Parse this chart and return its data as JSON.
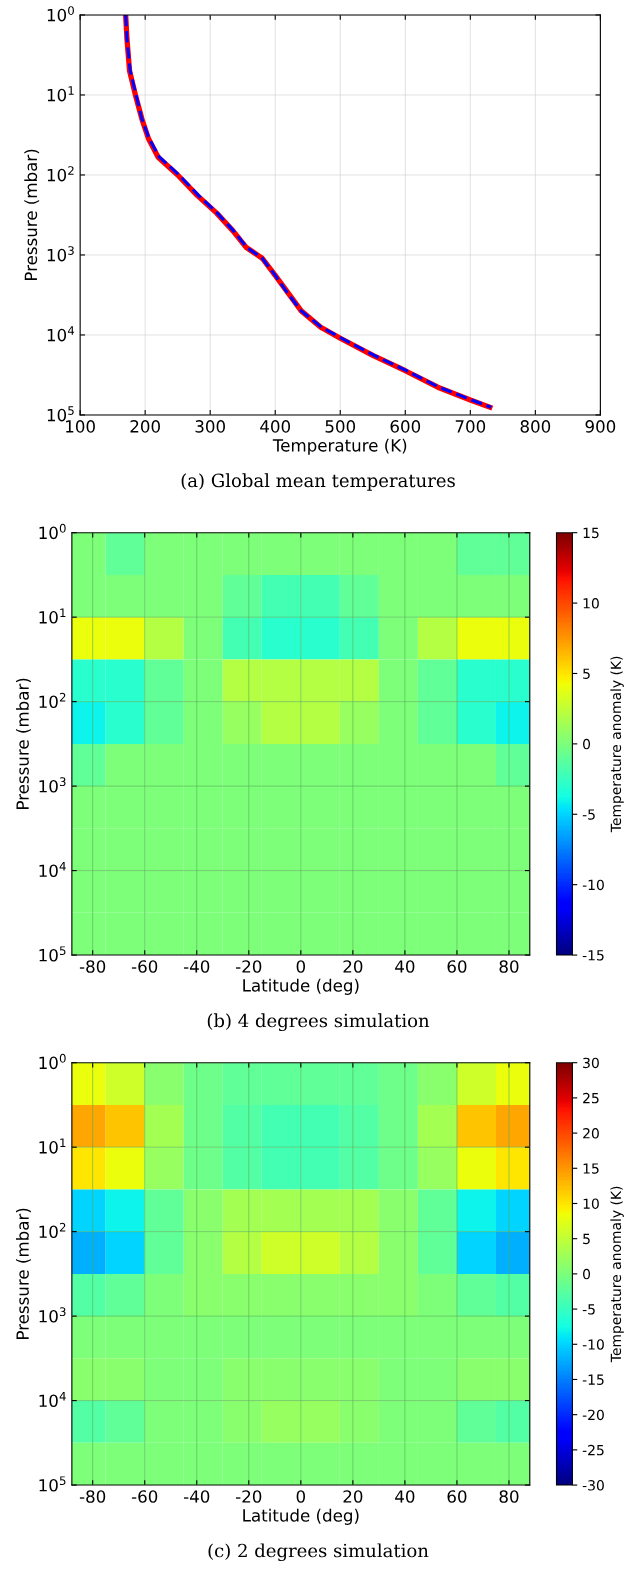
{
  "chart_data": [
    {
      "type": "line",
      "xlabel": "Temperature (K)",
      "ylabel": "Pressure (mbar)",
      "log": "y",
      "grid": true,
      "xlim": [
        100,
        900
      ],
      "xticks": [
        100,
        200,
        300,
        400,
        500,
        600,
        700,
        800,
        900
      ],
      "ylim": [
        100000,
        1
      ],
      "yticks": [
        {
          "value": 1,
          "label": "10$^{0}$"
        },
        {
          "value": 10,
          "label": "10$^{1}$"
        },
        {
          "value": 100,
          "label": "10$^{2}$"
        },
        {
          "value": 1000,
          "label": "10$^{3}$"
        },
        {
          "value": 10000,
          "label": "10$^{4}$"
        },
        {
          "value": 100000,
          "label": "10$^{5}$"
        }
      ],
      "series": [
        {
          "color": "#ff0000",
          "line_style": "solid",
          "x": [
            170,
            172,
            176,
            185,
            195,
            205,
            220,
            250,
            280,
            310,
            335,
            355,
            380,
            400,
            420,
            440,
            470,
            500,
            550,
            600,
            650,
            700,
            730
          ],
          "values": [
            1,
            2,
            5,
            10,
            20,
            35,
            60,
            100,
            180,
            300,
            500,
            800,
            1100,
            1800,
            3000,
            5000,
            8000,
            11000,
            18000,
            28000,
            45000,
            65000,
            80000
          ]
        },
        {
          "color": "#0000ff",
          "line_style": "dashed",
          "x": [
            170,
            172,
            177,
            186,
            195,
            206,
            222,
            252,
            282,
            311,
            336,
            356,
            380,
            400,
            419,
            440,
            471,
            502,
            552,
            602,
            652,
            702,
            732
          ],
          "values": [
            1,
            2,
            5,
            10,
            20,
            35,
            60,
            100,
            180,
            300,
            500,
            800,
            1100,
            1800,
            3000,
            5000,
            8000,
            11000,
            18000,
            28000,
            45000,
            65000,
            80000
          ]
        }
      ],
      "annotations": [
        "(a) Global mean temperatures"
      ]
    },
    {
      "type": "heatmap",
      "xlabel": "Latitude (deg)",
      "ylabel": "Pressure (mbar)",
      "clabel": "Temperature anomaly (K)",
      "log": "y",
      "grid": true,
      "x": [
        -82.5,
        -67.5,
        -52.5,
        -37.5,
        -22.5,
        -7.5,
        7.5,
        22.5,
        37.5,
        52.5,
        67.5,
        82.5
      ],
      "y": [
        1.78,
        5.62,
        17.8,
        56.2,
        178,
        562,
        1780,
        5620,
        17800,
        56200
      ],
      "xlim": [
        -88,
        88
      ],
      "xticks": [
        -80,
        -60,
        -40,
        -20,
        0,
        20,
        40,
        60,
        80
      ],
      "ylim": [
        100000,
        1
      ],
      "yticks": [
        {
          "value": 1,
          "label": "10$^{0}$"
        },
        {
          "value": 10,
          "label": "10$^{1}$"
        },
        {
          "value": 100,
          "label": "10$^{2}$"
        },
        {
          "value": 1000,
          "label": "10$^{3}$"
        },
        {
          "value": 10000,
          "label": "10$^{4}$"
        },
        {
          "value": 100000,
          "label": "10$^{5}$"
        }
      ],
      "clim": [
        -15,
        15
      ],
      "cticks": [
        -15,
        -10,
        -5,
        0,
        5,
        10,
        15
      ],
      "cells": [
        [
          0,
          -1,
          0,
          0,
          0,
          0,
          0,
          0,
          0,
          0,
          -1,
          -1
        ],
        [
          0,
          0,
          0,
          0,
          -1,
          -2,
          -2,
          -1,
          0,
          0,
          0,
          0
        ],
        [
          4,
          4,
          2,
          0,
          -2,
          -3,
          -3,
          -2,
          0,
          2,
          4,
          4
        ],
        [
          -3,
          -3,
          -1,
          0,
          2,
          2,
          2,
          2,
          0,
          -1,
          -3,
          -3
        ],
        [
          -4,
          -3,
          -1,
          0,
          1,
          2,
          2,
          1,
          0,
          -1,
          -3,
          -4
        ],
        [
          -1,
          0,
          0,
          0,
          0,
          0,
          0,
          0,
          0,
          0,
          0,
          -1
        ],
        [
          0,
          0,
          0,
          0,
          0,
          0,
          0,
          0,
          0,
          0,
          0,
          0
        ],
        [
          0,
          0,
          0,
          0,
          0,
          0,
          0,
          0,
          0,
          0,
          0,
          0
        ],
        [
          0,
          0,
          0,
          0,
          0,
          0,
          0,
          0,
          0,
          0,
          0,
          0
        ],
        [
          0,
          0,
          0,
          0,
          0,
          0,
          0,
          0,
          0,
          0,
          0,
          0
        ]
      ],
      "annotations": [
        "(b) 4 degrees simulation"
      ]
    },
    {
      "type": "heatmap",
      "xlabel": "Latitude (deg)",
      "ylabel": "Pressure (mbar)",
      "clabel": "Temperature anomaly (K)",
      "log": "y",
      "grid": true,
      "x": [
        -82.5,
        -67.5,
        -52.5,
        -37.5,
        -22.5,
        -7.5,
        7.5,
        22.5,
        37.5,
        52.5,
        67.5,
        82.5
      ],
      "y": [
        1.78,
        5.62,
        17.8,
        56.2,
        178,
        562,
        1780,
        5620,
        17800,
        56200
      ],
      "xlim": [
        -88,
        88
      ],
      "xticks": [
        -80,
        -60,
        -40,
        -20,
        0,
        20,
        40,
        60,
        80
      ],
      "ylim": [
        100000,
        1
      ],
      "yticks": [
        {
          "value": 1,
          "label": "10$^{0}$"
        },
        {
          "value": 10,
          "label": "10$^{1}$"
        },
        {
          "value": 100,
          "label": "10$^{2}$"
        },
        {
          "value": 1000,
          "label": "10$^{3}$"
        },
        {
          "value": 10000,
          "label": "10$^{4}$"
        },
        {
          "value": 100000,
          "label": "10$^{5}$"
        }
      ],
      "clim": [
        -30,
        30
      ],
      "cticks": [
        -30,
        -25,
        -20,
        -15,
        -10,
        -5,
        0,
        5,
        10,
        15,
        20,
        25,
        30
      ],
      "cells": [
        [
          8,
          6,
          1,
          -1,
          -2,
          -2,
          -2,
          -2,
          -1,
          1,
          6,
          8
        ],
        [
          14,
          12,
          3,
          -1,
          -3,
          -4,
          -4,
          -3,
          -1,
          3,
          12,
          14
        ],
        [
          10,
          8,
          2,
          -1,
          -3,
          -4,
          -4,
          -3,
          -1,
          2,
          8,
          10
        ],
        [
          -10,
          -8,
          -2,
          1,
          3,
          3,
          3,
          3,
          1,
          -2,
          -8,
          -10
        ],
        [
          -12,
          -10,
          -2,
          1,
          4,
          6,
          6,
          4,
          1,
          -2,
          -10,
          -12
        ],
        [
          -3,
          -2,
          0,
          1,
          1,
          1,
          1,
          1,
          1,
          0,
          -2,
          -3
        ],
        [
          0,
          0,
          0,
          0,
          0,
          0,
          0,
          0,
          0,
          0,
          0,
          0
        ],
        [
          1,
          1,
          0,
          0,
          1,
          1,
          1,
          1,
          0,
          0,
          1,
          1
        ],
        [
          -3,
          -2,
          0,
          0,
          1,
          2,
          2,
          1,
          0,
          0,
          -2,
          -3
        ],
        [
          0,
          0,
          0,
          0,
          0,
          0,
          0,
          0,
          0,
          0,
          0,
          0
        ]
      ],
      "annotations": [
        "(c) 2 degrees simulation"
      ]
    }
  ]
}
